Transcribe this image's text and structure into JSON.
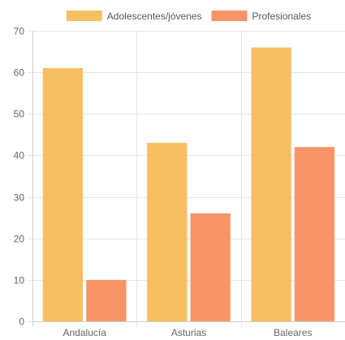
{
  "chart_data": {
    "type": "bar",
    "categories": [
      "Andalucía",
      "Asturias",
      "Baleares"
    ],
    "series": [
      {
        "name": "Adolescentes/jóvenes",
        "values": [
          61,
          43,
          66
        ],
        "color": "#f6bf63"
      },
      {
        "name": "Profesionales",
        "values": [
          10,
          26,
          42
        ],
        "color": "#f89467"
      }
    ],
    "ylim": [
      0,
      70
    ],
    "yticks": [
      0,
      10,
      20,
      30,
      40,
      50,
      60,
      70
    ],
    "grid": true,
    "legend_position": "top-center"
  }
}
